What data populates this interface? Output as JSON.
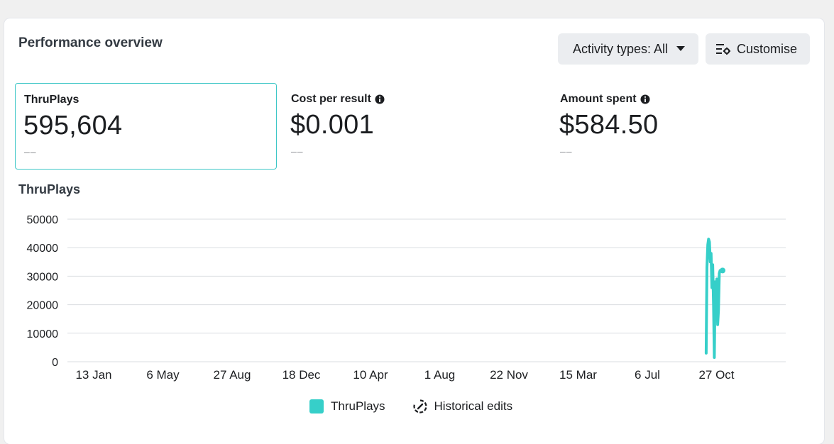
{
  "header": {
    "title": "Performance overview",
    "activity_button_label": "Activity types: All",
    "customise_button_label": "Customise"
  },
  "metrics": [
    {
      "label": "ThruPlays",
      "value": "595,604",
      "sub": "––",
      "selected": true,
      "info": false
    },
    {
      "label": "Cost per result",
      "value": "$0.001",
      "sub": "––",
      "selected": false,
      "info": true
    },
    {
      "label": "Amount spent",
      "value": "$584.50",
      "sub": "––",
      "selected": false,
      "info": true
    }
  ],
  "chart_title": "ThruPlays",
  "colors": {
    "accent": "#3ec7c7",
    "series": "#36cfc9",
    "grid": "#dadde1",
    "tick_text": "#1c1e21"
  },
  "legend": {
    "series_label": "ThruPlays",
    "historical_label": "Historical edits"
  },
  "chart_data": {
    "type": "line",
    "title": "ThruPlays",
    "xlabel": "",
    "ylabel": "",
    "ylim": [
      0,
      50000
    ],
    "y_ticks": [
      0,
      10000,
      20000,
      30000,
      40000,
      50000
    ],
    "x_ticks": [
      "13 Jan",
      "6 May",
      "27 Aug",
      "18 Dec",
      "10 Apr",
      "1 Aug",
      "22 Nov",
      "15 Mar",
      "6 Jul",
      "27 Oct"
    ],
    "grid": true,
    "legend_position": "bottom",
    "series": [
      {
        "name": "ThruPlays",
        "x": [
          "23 Oct",
          "24 Oct",
          "25 Oct",
          "26 Oct",
          "27 Oct",
          "28 Oct",
          "29 Oct",
          "30 Oct",
          "31 Oct",
          "1 Nov",
          "2 Nov",
          "3 Nov",
          "4 Nov",
          "5 Nov",
          "6 Nov",
          "7 Nov",
          "8 Nov",
          "9 Nov",
          "10 Nov",
          "11 Nov",
          "12 Nov"
        ],
        "values": [
          3000,
          33000,
          41000,
          43000,
          42000,
          35000,
          38000,
          26000,
          34000,
          20000,
          1500,
          28000,
          24000,
          29000,
          13000,
          18000,
          31000,
          32000,
          32000,
          32000,
          32000
        ]
      }
    ]
  }
}
